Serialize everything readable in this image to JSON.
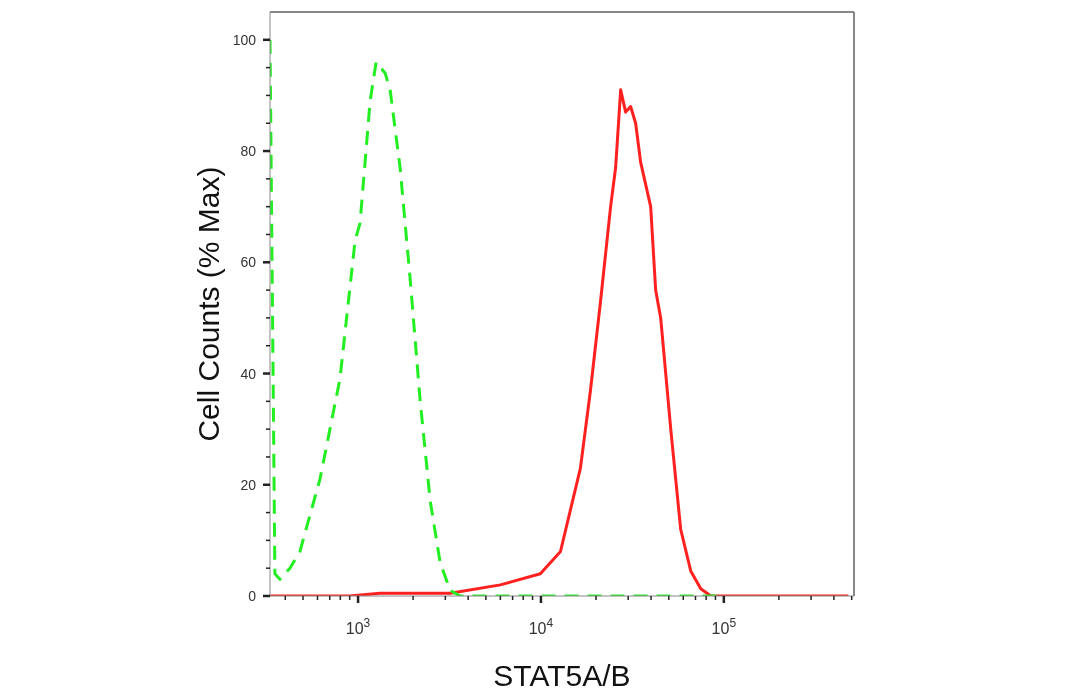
{
  "chart_data": {
    "type": "line",
    "xlabel": "STAT5A/B",
    "ylabel": "Cell Counts (% Max)",
    "log": "x",
    "marker": "none",
    "xlim": [
      330,
      515000
    ],
    "ylim": [
      0,
      105
    ],
    "xticks": [
      {
        "value": 400,
        "label": null
      },
      {
        "value": 500,
        "label": null
      },
      {
        "value": 600,
        "label": null
      },
      {
        "value": 700,
        "label": null
      },
      {
        "value": 800,
        "label": null
      },
      {
        "value": 900,
        "label": null
      },
      {
        "value": 1000,
        "label": "10$^{3}$"
      },
      {
        "value": 2000,
        "label": null
      },
      {
        "value": 3000,
        "label": null
      },
      {
        "value": 4000,
        "label": null
      },
      {
        "value": 5000,
        "label": null
      },
      {
        "value": 6000,
        "label": null
      },
      {
        "value": 7000,
        "label": null
      },
      {
        "value": 8000,
        "label": null
      },
      {
        "value": 9000,
        "label": null
      },
      {
        "value": 10000,
        "label": "10$^{4}$"
      },
      {
        "value": 20000,
        "label": null
      },
      {
        "value": 30000,
        "label": null
      },
      {
        "value": 40000,
        "label": null
      },
      {
        "value": 50000,
        "label": null
      },
      {
        "value": 60000,
        "label": null
      },
      {
        "value": 70000,
        "label": null
      },
      {
        "value": 80000,
        "label": null
      },
      {
        "value": 90000,
        "label": null
      },
      {
        "value": 100000,
        "label": "10$^{5}$"
      },
      {
        "value": 200000,
        "label": null
      },
      {
        "value": 300000,
        "label": null
      },
      {
        "value": 400000,
        "label": null
      },
      {
        "value": 500000,
        "label": null
      }
    ],
    "yticks": [
      0,
      {
        "value": 5,
        "label": null
      },
      {
        "value": 10,
        "label": null
      },
      {
        "value": 15,
        "label": null
      },
      20,
      {
        "value": 25,
        "label": null
      },
      {
        "value": 30,
        "label": null
      },
      {
        "value": 35,
        "label": null
      },
      40,
      {
        "value": 45,
        "label": null
      },
      {
        "value": 50,
        "label": null
      },
      {
        "value": 55,
        "label": null
      },
      60,
      {
        "value": 65,
        "label": null
      },
      {
        "value": 70,
        "label": null
      },
      {
        "value": 75,
        "label": null
      },
      80,
      {
        "value": 85,
        "label": null
      },
      {
        "value": 90,
        "label": null
      },
      {
        "value": 95,
        "label": null
      },
      100
    ],
    "series": [
      {
        "color": "#22ee22",
        "line_style": "dashed",
        "x": [
          330,
          351,
          374,
          424,
          481,
          619,
          796,
          964,
          1025,
          1164,
          1256,
          1407,
          1497,
          1698,
          1927,
          2187,
          2483,
          2812,
          3192,
          3623,
          10000,
          100000
        ],
        "values": [
          100,
          4,
          3,
          5,
          8,
          21,
          39,
          64,
          67,
          89,
          96,
          94,
          91,
          77,
          57,
          35,
          17,
          6,
          1,
          0,
          0,
          0
        ]
      },
      {
        "color": "#ff2020",
        "line_style": "solid",
        "x": [
          330,
          900,
          1320,
          3192,
          5999,
          9930,
          12790,
          16440,
          18660,
          21180,
          24040,
          25600,
          27290,
          29050,
          30930,
          32950,
          35080,
          39810,
          42390,
          45160,
          51260,
          58090,
          65920,
          74820,
          84920,
          480000
        ],
        "values": [
          0,
          0,
          0.5,
          0.5,
          2,
          4,
          8,
          23,
          37,
          53,
          70,
          77,
          91,
          87,
          88,
          85,
          78,
          70,
          55,
          50,
          30,
          12,
          4.5,
          1.3,
          0,
          0
        ]
      }
    ]
  }
}
